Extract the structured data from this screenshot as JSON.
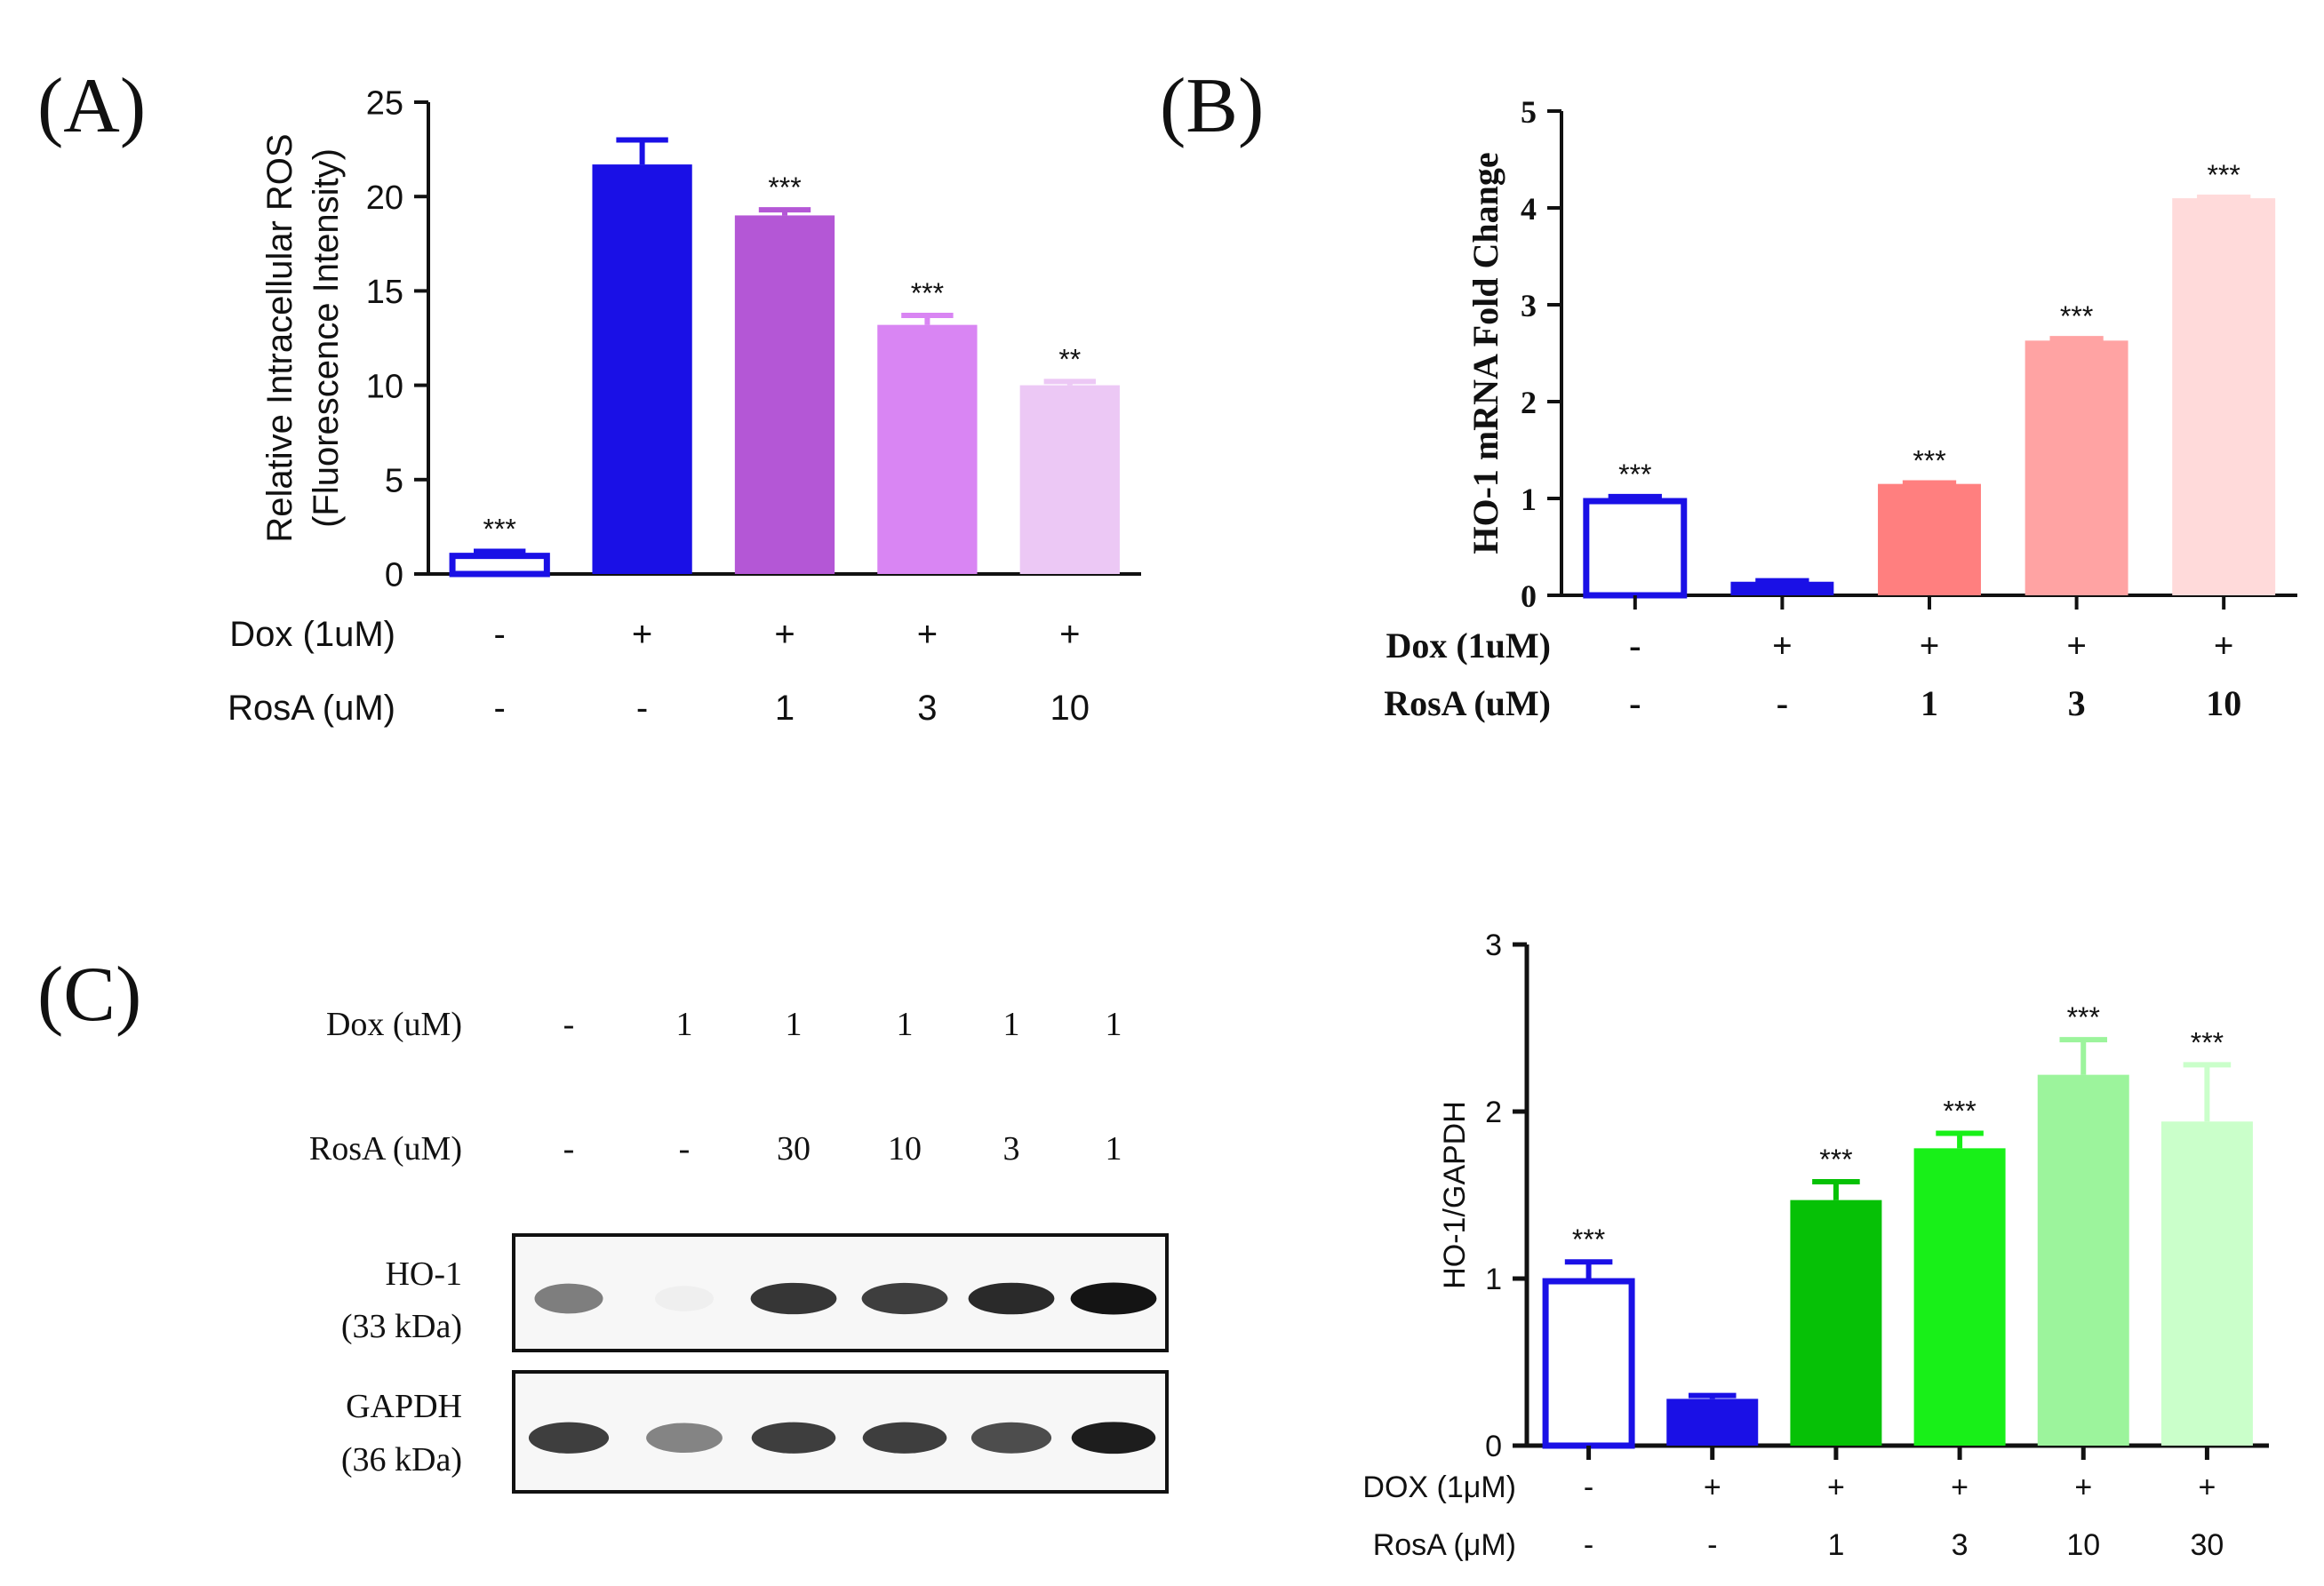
{
  "figure": {
    "panels": {
      "A": {
        "label": "(A)"
      },
      "B": {
        "label": "(B)"
      },
      "C": {
        "label": "(C)"
      }
    }
  },
  "chart_data": [
    {
      "id": "A",
      "type": "bar",
      "ylabel_lines": [
        "Relative Intracellular ROS",
        "(Fluorescence Intensity)"
      ],
      "ylim": [
        0,
        25
      ],
      "yticks": [
        0,
        5,
        10,
        15,
        20,
        25
      ],
      "values": [
        1.1,
        21.7,
        19.0,
        13.2,
        10.0
      ],
      "errors": [
        0.1,
        1.3,
        0.3,
        0.5,
        0.2
      ],
      "significance": [
        "***",
        "",
        "***",
        "***",
        "**"
      ],
      "colors": [
        "#1a10e6",
        "#1a10e6",
        "#b457d6",
        "#d985f3",
        "#ecc8f5"
      ],
      "filled": [
        false,
        true,
        true,
        true,
        true
      ],
      "rows": [
        {
          "label": "Dox (1uM)",
          "values": [
            "-",
            "+",
            "+",
            "+",
            "+"
          ]
        },
        {
          "label": "RosA (uM)",
          "values": [
            "-",
            "-",
            "1",
            "3",
            "10"
          ]
        }
      ]
    },
    {
      "id": "B",
      "type": "bar",
      "ylabel_lines": [
        "HO-1 mRNA Fold Change"
      ],
      "ylim": [
        0,
        5
      ],
      "yticks": [
        0,
        1,
        2,
        3,
        4,
        5
      ],
      "values": [
        1.0,
        0.14,
        1.15,
        2.63,
        4.1
      ],
      "errors": [
        0.02,
        0.01,
        0.01,
        0.02,
        0.01
      ],
      "significance": [
        "***",
        "",
        "***",
        "***",
        "***"
      ],
      "colors": [
        "#1a10e6",
        "#1a10e6",
        "#ff7f7f",
        "#ffa3a3",
        "#ffdada"
      ],
      "filled": [
        false,
        true,
        true,
        true,
        true
      ],
      "rows": [
        {
          "label": "Dox (1uM)",
          "values": [
            "-",
            "+",
            "+",
            "+",
            "+"
          ]
        },
        {
          "label": "RosA (uM)",
          "values": [
            "-",
            "-",
            "1",
            "3",
            "10"
          ]
        }
      ]
    },
    {
      "id": "C-quant",
      "type": "bar",
      "ylabel_lines": [
        "HO-1/GAPDH"
      ],
      "ylim": [
        0,
        3
      ],
      "yticks": [
        0,
        1,
        2,
        3
      ],
      "values": [
        1.0,
        0.28,
        1.47,
        1.78,
        2.22,
        1.94
      ],
      "errors": [
        0.1,
        0.02,
        0.11,
        0.09,
        0.21,
        0.34
      ],
      "significance": [
        "***",
        "",
        "***",
        "***",
        "***",
        "***"
      ],
      "colors": [
        "#1a10e6",
        "#1a10e6",
        "#06c106",
        "#18f018",
        "#9cf49c",
        "#caffca"
      ],
      "filled": [
        false,
        true,
        true,
        true,
        true,
        true
      ],
      "rows": [
        {
          "label": "DOX (1μM)",
          "values": [
            "-",
            "+",
            "+",
            "+",
            "+",
            "+"
          ]
        },
        {
          "label": "RosA (μM)",
          "values": [
            "-",
            "-",
            "1",
            "3",
            "10",
            "30"
          ]
        }
      ]
    }
  ],
  "western_blot": {
    "rows": [
      {
        "label": "Dox (uM)",
        "values": [
          "-",
          "1",
          "1",
          "1",
          "1",
          "1"
        ]
      },
      {
        "label": "RosA (uM)",
        "values": [
          "-",
          "-",
          "30",
          "10",
          "3",
          "1"
        ]
      }
    ],
    "blots": [
      {
        "name": "HO-1",
        "size": "(33 kDa)",
        "intensity": [
          0.72,
          0.06,
          0.92,
          0.9,
          0.95,
          1.0
        ],
        "widths": [
          0.7,
          0.6,
          0.88,
          0.88,
          0.88,
          0.88
        ]
      },
      {
        "name": "GAPDH",
        "size": "(36 kDa)",
        "intensity": [
          0.9,
          0.7,
          0.9,
          0.9,
          0.86,
          0.98
        ],
        "widths": [
          0.82,
          0.78,
          0.86,
          0.86,
          0.82,
          0.86
        ]
      }
    ]
  }
}
